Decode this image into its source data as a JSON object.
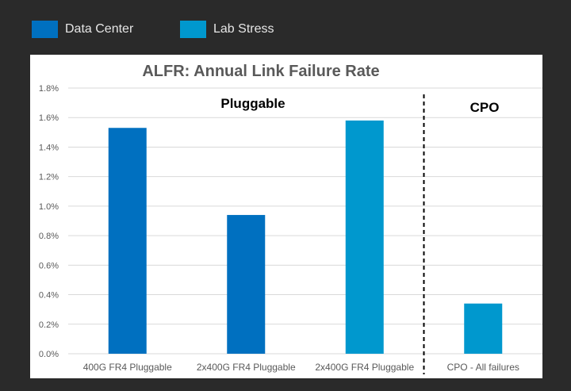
{
  "legend": [
    {
      "label": "Data Center",
      "color": "#0070c0"
    },
    {
      "label": "Lab Stress",
      "color": "#0098ce"
    }
  ],
  "chart_data": {
    "type": "bar",
    "title": "ALFR: Annual Link Failure Rate",
    "xlabel": "",
    "ylabel": "",
    "ylim": [
      0,
      0.018
    ],
    "ytick_values": [
      0,
      0.002,
      0.004,
      0.006,
      0.008,
      0.01,
      0.012,
      0.014,
      0.016,
      0.018
    ],
    "ytick_labels": [
      "0.0%",
      "0.2%",
      "0.4%",
      "0.6%",
      "0.8%",
      "1.0%",
      "1.2%",
      "1.4%",
      "1.6%",
      "1.8%"
    ],
    "grid": true,
    "categories": [
      "400G FR4 Pluggable",
      "2x400G FR4 Pluggable",
      "2x400G FR4 Pluggable",
      "CPO - All failures"
    ],
    "values": [
      0.0153,
      0.0094,
      0.0158,
      0.0034
    ],
    "series_of_bar": [
      "Data Center",
      "Data Center",
      "Lab Stress",
      "Lab Stress"
    ],
    "annotations": [
      {
        "text": "Pluggable"
      },
      {
        "text": "CPO"
      }
    ],
    "divider_between_categories": [
      2,
      3
    ]
  }
}
